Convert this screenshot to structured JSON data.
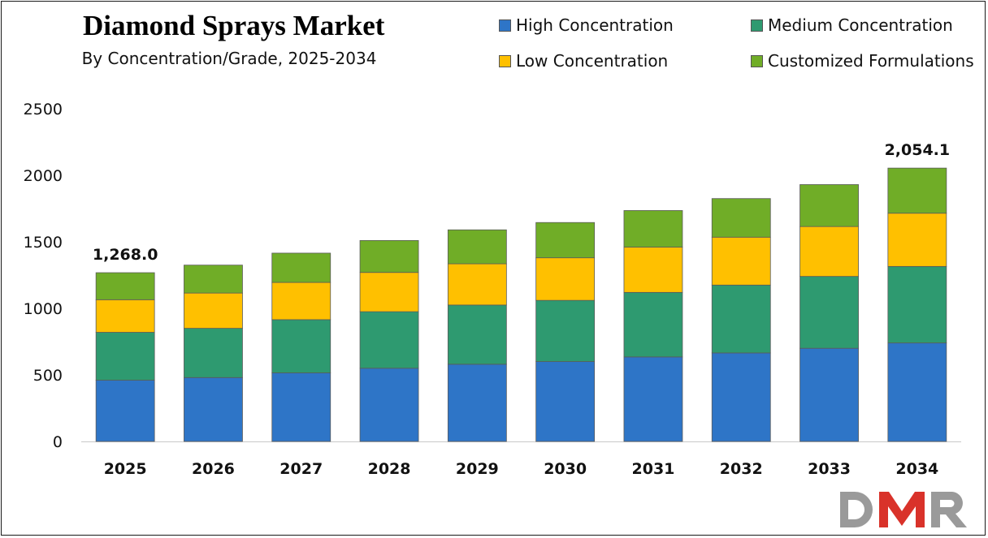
{
  "chart_data": {
    "type": "bar",
    "stacked": true,
    "title": "Diamond Sprays Market",
    "subtitle": "By Concentration/Grade, 2025-2034",
    "categories": [
      "2025",
      "2026",
      "2027",
      "2028",
      "2029",
      "2030",
      "2031",
      "2032",
      "2033",
      "2034"
    ],
    "series": [
      {
        "name": "High Concentration",
        "color": "#2E75C7",
        "values": [
          460,
          480,
          515,
          550,
          580,
          600,
          635,
          665,
          700,
          740
        ]
      },
      {
        "name": "Medium Concentration",
        "color": "#2E9A70",
        "values": [
          360,
          370,
          400,
          425,
          445,
          460,
          485,
          510,
          540,
          575
        ]
      },
      {
        "name": "Low Concentration",
        "color": "#FFC000",
        "values": [
          245,
          265,
          280,
          295,
          310,
          320,
          340,
          360,
          375,
          400
        ]
      },
      {
        "name": "Customized Formulations",
        "color": "#70AD27",
        "values": [
          203,
          210,
          220,
          240,
          255,
          265,
          275,
          290,
          315,
          339.1
        ]
      }
    ],
    "data_labels": [
      {
        "category": "2025",
        "text": "1,268.0"
      },
      {
        "category": "2034",
        "text": "2,054.1"
      }
    ],
    "yticks": [
      "0",
      "500",
      "1000",
      "1500",
      "2000",
      "2500"
    ],
    "ylim": [
      0,
      2500
    ],
    "xlabel": "",
    "ylabel": "",
    "grid": false,
    "legend_position": "top-right"
  },
  "logo": {
    "text": "DMR"
  }
}
